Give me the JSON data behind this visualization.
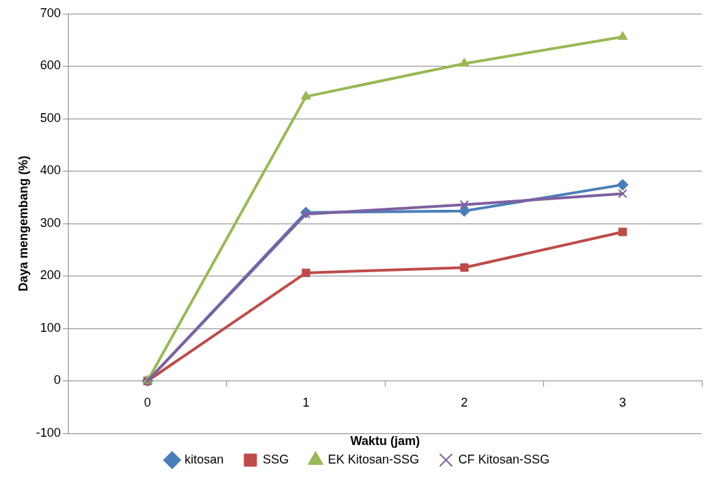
{
  "chart_data": {
    "type": "line",
    "xlabel": "Waktu (jam)",
    "ylabel": "Daya mengembang (%)",
    "categories": [
      "0",
      "1",
      "2",
      "3"
    ],
    "ylim": [
      -100,
      700
    ],
    "yticks": [
      -100,
      0,
      100,
      200,
      300,
      400,
      500,
      600,
      700
    ],
    "grid": "y",
    "legend": "bottom",
    "line_style": "solid",
    "series": [
      {
        "name": "kitosan",
        "color": "#4a7ebb",
        "marker": "diamond",
        "values": [
          0,
          321,
          324,
          374
        ]
      },
      {
        "name": "SSG",
        "color": "#be4b48",
        "marker": "square",
        "values": [
          0,
          206,
          216,
          284
        ]
      },
      {
        "name": "EK Kitosan-SSG",
        "color": "#98b954",
        "marker": "triangle",
        "values": [
          0,
          542,
          605,
          656
        ]
      },
      {
        "name": "CF Kitosan-SSG",
        "color": "#7d60a0",
        "marker": "cross",
        "values": [
          0,
          318,
          336,
          357
        ]
      }
    ]
  }
}
